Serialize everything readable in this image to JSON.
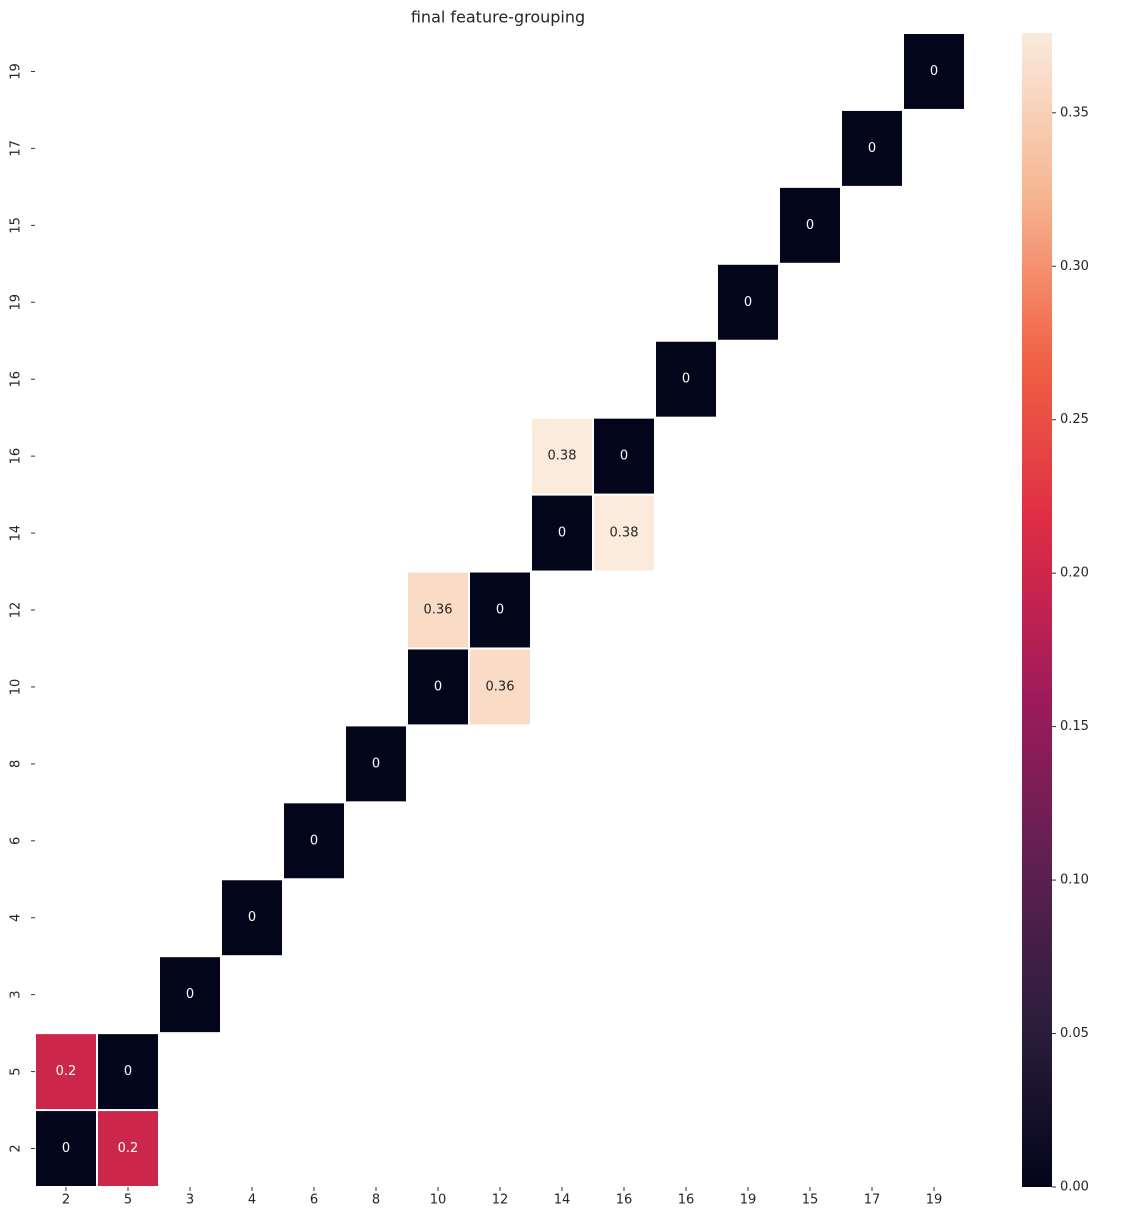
{
  "chart_data": {
    "type": "heatmap",
    "title": "final feature-grouping",
    "x": [
      "2",
      "5",
      "3",
      "4",
      "6",
      "8",
      "10",
      "12",
      "14",
      "16",
      "16",
      "19",
      "15",
      "17",
      "19"
    ],
    "y": [
      "19",
      "17",
      "15",
      "19",
      "16",
      "16",
      "14",
      "12",
      "10",
      "8",
      "6",
      "4",
      "3",
      "5",
      "2"
    ],
    "values": [
      [
        null,
        null,
        null,
        null,
        null,
        null,
        null,
        null,
        null,
        null,
        null,
        null,
        null,
        null,
        0
      ],
      [
        null,
        null,
        null,
        null,
        null,
        null,
        null,
        null,
        null,
        null,
        null,
        null,
        null,
        0,
        null
      ],
      [
        null,
        null,
        null,
        null,
        null,
        null,
        null,
        null,
        null,
        null,
        null,
        null,
        0,
        null,
        null
      ],
      [
        null,
        null,
        null,
        null,
        null,
        null,
        null,
        null,
        null,
        null,
        null,
        0,
        null,
        null,
        null
      ],
      [
        null,
        null,
        null,
        null,
        null,
        null,
        null,
        null,
        null,
        null,
        0,
        null,
        null,
        null,
        null
      ],
      [
        null,
        null,
        null,
        null,
        null,
        null,
        null,
        null,
        0.376,
        0,
        null,
        null,
        null,
        null,
        null
      ],
      [
        null,
        null,
        null,
        null,
        null,
        null,
        null,
        null,
        0,
        0.376,
        null,
        null,
        null,
        null,
        null
      ],
      [
        null,
        null,
        null,
        null,
        null,
        null,
        0.36,
        0,
        null,
        null,
        null,
        null,
        null,
        null,
        null
      ],
      [
        null,
        null,
        null,
        null,
        null,
        null,
        0,
        0.36,
        null,
        null,
        null,
        null,
        null,
        null,
        null
      ],
      [
        null,
        null,
        null,
        null,
        null,
        0,
        null,
        null,
        null,
        null,
        null,
        null,
        null,
        null,
        null
      ],
      [
        null,
        null,
        null,
        null,
        0,
        null,
        null,
        null,
        null,
        null,
        null,
        null,
        null,
        null,
        null
      ],
      [
        null,
        null,
        null,
        0,
        null,
        null,
        null,
        null,
        null,
        null,
        null,
        null,
        null,
        null,
        null
      ],
      [
        null,
        null,
        0,
        null,
        null,
        null,
        null,
        null,
        null,
        null,
        null,
        null,
        null,
        null,
        null
      ],
      [
        0.2,
        0,
        null,
        null,
        null,
        null,
        null,
        null,
        null,
        null,
        null,
        null,
        null,
        null,
        null
      ],
      [
        0,
        0.2,
        null,
        null,
        null,
        null,
        null,
        null,
        null,
        null,
        null,
        null,
        null,
        null,
        null
      ]
    ],
    "value_labels": [
      [
        null,
        null,
        null,
        null,
        null,
        null,
        null,
        null,
        null,
        null,
        null,
        null,
        null,
        null,
        "0"
      ],
      [
        null,
        null,
        null,
        null,
        null,
        null,
        null,
        null,
        null,
        null,
        null,
        null,
        null,
        "0",
        null
      ],
      [
        null,
        null,
        null,
        null,
        null,
        null,
        null,
        null,
        null,
        null,
        null,
        null,
        "0",
        null,
        null
      ],
      [
        null,
        null,
        null,
        null,
        null,
        null,
        null,
        null,
        null,
        null,
        null,
        "0",
        null,
        null,
        null
      ],
      [
        null,
        null,
        null,
        null,
        null,
        null,
        null,
        null,
        null,
        null,
        "0",
        null,
        null,
        null,
        null
      ],
      [
        null,
        null,
        null,
        null,
        null,
        null,
        null,
        null,
        "0.38",
        "0",
        null,
        null,
        null,
        null,
        null
      ],
      [
        null,
        null,
        null,
        null,
        null,
        null,
        null,
        null,
        "0",
        "0.38",
        null,
        null,
        null,
        null,
        null
      ],
      [
        null,
        null,
        null,
        null,
        null,
        null,
        "0.36",
        "0",
        null,
        null,
        null,
        null,
        null,
        null,
        null
      ],
      [
        null,
        null,
        null,
        null,
        null,
        null,
        "0",
        "0.36",
        null,
        null,
        null,
        null,
        null,
        null,
        null
      ],
      [
        null,
        null,
        null,
        null,
        null,
        "0",
        null,
        null,
        null,
        null,
        null,
        null,
        null,
        null,
        null
      ],
      [
        null,
        null,
        null,
        null,
        "0",
        null,
        null,
        null,
        null,
        null,
        null,
        null,
        null,
        null,
        null
      ],
      [
        null,
        null,
        null,
        "0",
        null,
        null,
        null,
        null,
        null,
        null,
        null,
        null,
        null,
        null,
        null
      ],
      [
        null,
        null,
        "0",
        null,
        null,
        null,
        null,
        null,
        null,
        null,
        null,
        null,
        null,
        null,
        null
      ],
      [
        "0.2",
        "0",
        null,
        null,
        null,
        null,
        null,
        null,
        null,
        null,
        null,
        null,
        null,
        null,
        null
      ],
      [
        "0",
        "0.2",
        null,
        null,
        null,
        null,
        null,
        null,
        null,
        null,
        null,
        null,
        null,
        null,
        null
      ]
    ],
    "colormap": [
      "#03051a",
      "#2c1e3d",
      "#611f53",
      "#a11a5b",
      "#dd2c45",
      "#f06043",
      "#f6b48f",
      "#faebdd"
    ],
    "clim": [
      0,
      0.376
    ],
    "cticks": [
      {
        "value": 0,
        "label": "0.00"
      },
      {
        "value": 0.05,
        "label": "0.05"
      },
      {
        "value": 0.1,
        "label": "0.10"
      },
      {
        "value": 0.15,
        "label": "0.15"
      },
      {
        "value": 0.2,
        "label": "0.20"
      },
      {
        "value": 0.25,
        "label": "0.25"
      },
      {
        "value": 0.3,
        "label": "0.30"
      },
      {
        "value": 0.35,
        "label": "0.35"
      }
    ]
  }
}
